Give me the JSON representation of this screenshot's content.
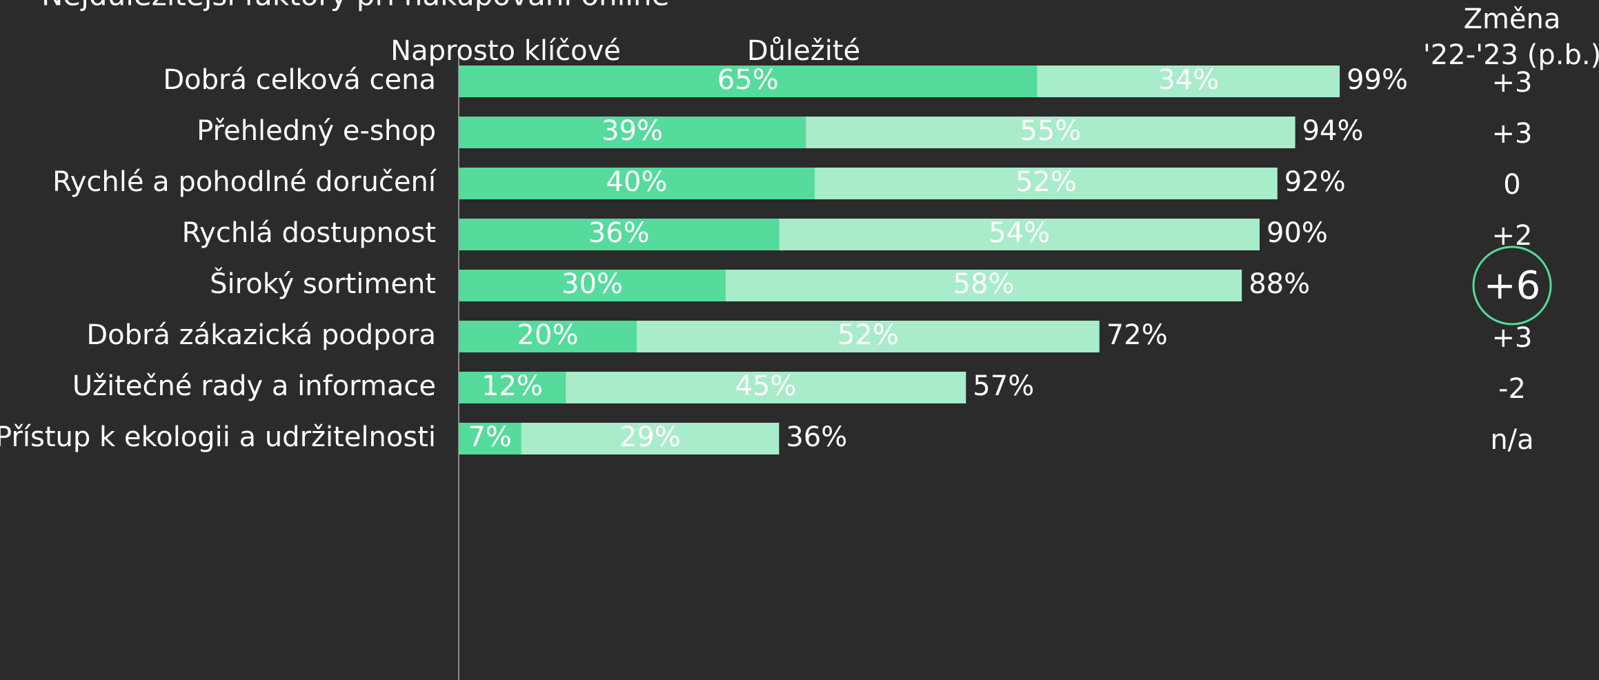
{
  "chart_data": {
    "type": "stacked-bar-horizontal",
    "title": "Nejdůležitější faktory při nakupování online",
    "categories": [
      "Dobrá celková cena",
      "Přehledný e-shop",
      "Rychlé a pohodlné doručení",
      "Rychlá dostupnost",
      "Široký sortiment",
      "Dobrá zákazická podpora",
      "Užitečné rady a informace",
      "Přístup k ekologii a udržitelnosti"
    ],
    "series": [
      {
        "name": "Naprosto klíčové",
        "color": "#55db9c",
        "label_color": "#ffffff",
        "values": [
          65,
          39,
          40,
          36,
          30,
          20,
          12,
          7
        ],
        "value_labels": [
          "65%",
          "39%",
          "40%",
          "36%",
          "30%",
          "20%",
          "12%",
          "7%"
        ]
      },
      {
        "name": "Důležité",
        "color": "#a8ecca",
        "label_color": "#4d4d4d",
        "values": [
          34,
          55,
          52,
          54,
          58,
          52,
          45,
          29
        ],
        "value_labels": [
          "34%",
          "55%",
          "52%",
          "54%",
          "58%",
          "52%",
          "45%",
          "29%"
        ]
      }
    ],
    "totals": [
      99,
      94,
      92,
      90,
      88,
      72,
      57,
      36
    ],
    "total_labels": [
      "99%",
      "94%",
      "92%",
      "90%",
      "88%",
      "72%",
      "57%",
      "36%"
    ],
    "change_title": [
      "Změna",
      "'22-'23 (p.b.)"
    ],
    "changes": [
      3,
      3,
      0,
      2,
      6,
      3,
      -2,
      null
    ],
    "change_labels": [
      "+3",
      "+3",
      "0",
      "+2",
      "+6",
      "+3",
      "-2",
      "n/a"
    ],
    "highlight_index": 4,
    "xlim": [
      0,
      100
    ]
  }
}
